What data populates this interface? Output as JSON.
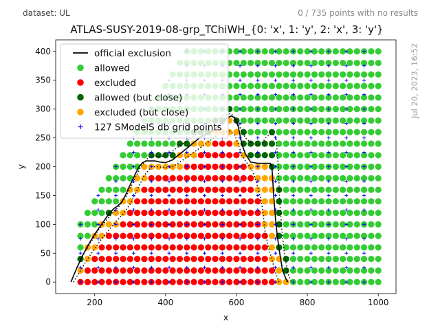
{
  "header": {
    "dataset": "dataset: UL",
    "no_results": "0 / 735 points with no results",
    "timestamp": "Jul 20, 2023, 16:52"
  },
  "chart_data": {
    "type": "scatter",
    "title": "ATLAS-SUSY-2019-08-grp_TChiWH_{0: 'x', 1: 'y', 2: 'x', 3: 'y'}",
    "xlabel": "x",
    "ylabel": "y",
    "xlim": [
      90,
      1050
    ],
    "ylim": [
      -20,
      420
    ],
    "xticks": [
      200,
      400,
      600,
      800,
      1000
    ],
    "yticks": [
      0,
      50,
      100,
      150,
      200,
      250,
      300,
      350,
      400
    ],
    "grid": false,
    "legend_position": "top-left",
    "legend": [
      {
        "label": "official exclusion",
        "marker": "line",
        "color": "#000000"
      },
      {
        "label": "allowed",
        "marker": "dot",
        "color": "#33cc33"
      },
      {
        "label": "excluded",
        "marker": "dot",
        "color": "#ff0000"
      },
      {
        "label": "allowed (but close)",
        "marker": "dot",
        "color": "#006400"
      },
      {
        "label": "excluded (but close)",
        "marker": "dot",
        "color": "#ffa500"
      },
      {
        "label": "127 SModelS db grid points",
        "marker": "plus",
        "color": "#0000ff"
      }
    ],
    "series": [
      {
        "name": "official exclusion",
        "style": "solid",
        "color": "#000000",
        "x": [
          133,
          150,
          165,
          180,
          195,
          210,
          225,
          240,
          255,
          265,
          275,
          285,
          295,
          305,
          315,
          325,
          335,
          345,
          355,
          370,
          385,
          400,
          420,
          440,
          460,
          480,
          500,
          520,
          540,
          555,
          570,
          585,
          595,
          605,
          615,
          625,
          640,
          660,
          680,
          695,
          700,
          705,
          710,
          715,
          722,
          730,
          740,
          745
        ],
        "y": [
          0,
          25,
          45,
          62,
          78,
          92,
          105,
          118,
          128,
          132,
          138,
          148,
          162,
          175,
          188,
          200,
          207,
          210,
          210,
          210,
          208,
          207,
          212,
          222,
          232,
          242,
          252,
          258,
          265,
          275,
          283,
          288,
          285,
          270,
          240,
          222,
          208,
          206,
          206,
          206,
          200,
          150,
          110,
          80,
          50,
          20,
          5,
          0
        ]
      },
      {
        "name": "+1 sigma",
        "style": "dotted",
        "color": "#000000",
        "x": [
          150,
          170,
          190,
          210,
          230,
          250,
          270,
          290,
          310,
          330,
          350,
          370,
          390,
          410,
          430,
          460,
          490,
          520,
          545,
          565,
          585,
          600,
          612,
          625,
          640,
          655,
          670,
          685,
          700,
          712,
          718,
          722,
          728,
          735,
          745,
          755
        ],
        "y": [
          25,
          50,
          70,
          90,
          105,
          120,
          132,
          150,
          175,
          200,
          215,
          218,
          218,
          222,
          232,
          245,
          258,
          270,
          282,
          290,
          292,
          282,
          265,
          250,
          242,
          238,
          240,
          252,
          258,
          250,
          200,
          140,
          90,
          50,
          15,
          0
        ]
      },
      {
        "name": "-1 sigma",
        "style": "dotted",
        "color": "#000000",
        "x": [
          140,
          160,
          180,
          200,
          220,
          240,
          260,
          280,
          300,
          320,
          340,
          360,
          380,
          400,
          420,
          450,
          480,
          510,
          540,
          560,
          580,
          595,
          605,
          615,
          625,
          640,
          650,
          660,
          670,
          675,
          680,
          690,
          700,
          708,
          715,
          720
        ],
        "y": [
          0,
          20,
          40,
          58,
          75,
          90,
          105,
          118,
          135,
          160,
          185,
          200,
          200,
          198,
          200,
          212,
          225,
          238,
          252,
          260,
          262,
          255,
          240,
          220,
          210,
          198,
          185,
          165,
          140,
          120,
          90,
          60,
          40,
          20,
          8,
          0
        ]
      }
    ],
    "points_note": "grid of points roughly x from 160 to 1000, y from 0 to 400 in steps of 20; points classified by official exclusion curve",
    "point_grid": {
      "x_start": 160,
      "x_step": 20,
      "x_end": 1000,
      "y_start": 0,
      "y_step": 20,
      "y_end": 400
    }
  }
}
